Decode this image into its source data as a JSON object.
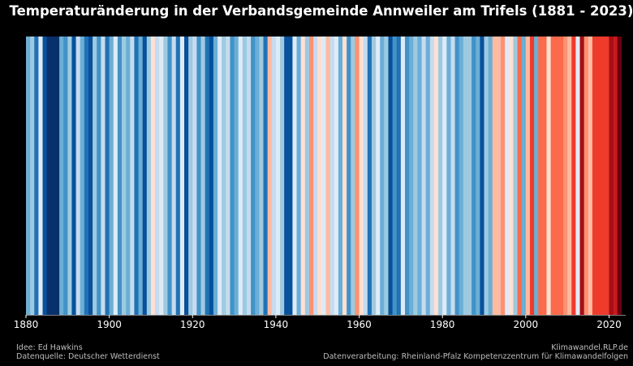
{
  "chart_data": {
    "type": "bar",
    "title": "Temperaturänderung in der Verbandsgemeinde Annweiler am Trifels (1881 - 2023)",
    "x_start": 1881,
    "x_end": 2023,
    "xlim": [
      1880,
      2024
    ],
    "x_ticks": [
      1880,
      1900,
      1920,
      1940,
      1960,
      1980,
      2000,
      2020
    ],
    "color_scale": {
      "min_class": -3,
      "max_class": 3
    },
    "colors": [
      "#08306b",
      "#08519c",
      "#2171b5",
      "#4292c6",
      "#6baed6",
      "#9ecae1",
      "#c6dbef",
      "#deebf7",
      "#fee0d2",
      "#fcbba1",
      "#fc9272",
      "#fb6a4a",
      "#ef3b2c",
      "#cb181d",
      "#a50f15",
      "#67000d"
    ],
    "color_index": [
      4,
      5,
      2,
      7,
      1,
      0,
      0,
      0,
      4,
      3,
      5,
      1,
      6,
      4,
      2,
      1,
      5,
      3,
      6,
      2,
      4,
      7,
      3,
      5,
      4,
      6,
      2,
      4,
      1,
      5,
      8,
      6,
      7,
      5,
      3,
      6,
      2,
      7,
      1,
      5,
      6,
      3,
      5,
      2,
      1,
      4,
      7,
      5,
      6,
      3,
      4,
      7,
      5,
      6,
      3,
      4,
      5,
      2,
      9,
      6,
      7,
      5,
      1,
      1,
      7,
      4,
      8,
      5,
      10,
      6,
      8,
      7,
      9,
      6,
      7,
      4,
      8,
      3,
      5,
      10,
      8,
      6,
      2,
      5,
      7,
      4,
      5,
      1,
      3,
      2,
      7,
      3,
      4,
      5,
      4,
      6,
      4,
      6,
      8,
      5,
      7,
      4,
      6,
      3,
      4,
      5,
      5,
      3,
      4,
      1,
      5,
      4,
      9,
      9,
      10,
      7,
      8,
      5,
      11,
      4,
      9,
      12,
      4,
      11,
      11,
      8,
      11,
      11,
      11,
      10,
      9,
      12,
      7,
      14,
      10,
      9,
      12,
      12,
      12,
      12,
      14,
      13,
      15
    ],
    "source_left": [
      "Idee: Ed Hawkins",
      "Datenquelle: Deutscher Wetterdienst"
    ],
    "source_right": [
      "Klimawandel.RLP.de",
      "Datenverarbeitung: Rheinland-Pfalz Kompetenzzentrum für Klimawandelfolgen"
    ]
  }
}
